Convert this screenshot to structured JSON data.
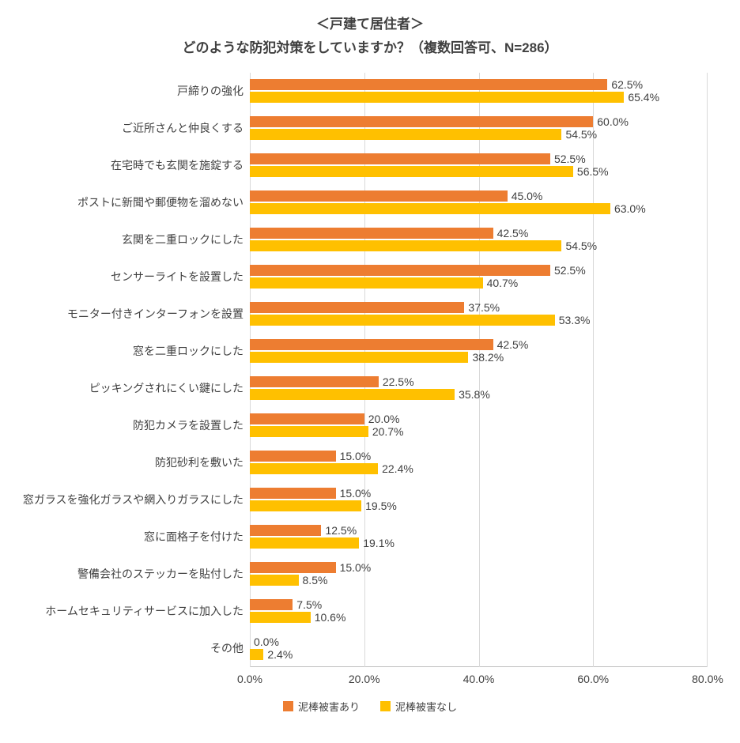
{
  "title": {
    "line1": "＜戸建て居住者＞",
    "line2": "どのような防犯対策をしていますか？（複数回答可、N=286）"
  },
  "chart_data": {
    "type": "bar",
    "orientation": "horizontal",
    "title": "＜戸建て居住者＞ どのような防犯対策をしていますか？（複数回答可、N=286）",
    "categories": [
      "戸締りの強化",
      "ご近所さんと仲良くする",
      "在宅時でも玄関を施錠する",
      "ポストに新聞や郵便物を溜めない",
      "玄関を二重ロックにした",
      "センサーライトを設置した",
      "モニター付きインターフォンを設置",
      "窓を二重ロックにした",
      "ピッキングされにくい鍵にした",
      "防犯カメラを設置した",
      "防犯砂利を敷いた",
      "窓ガラスを強化ガラスや網入りガラスにした",
      "窓に面格子を付けた",
      "警備会社のステッカーを貼付した",
      "ホームセキュリティサービスに加入した",
      "その他"
    ],
    "series": [
      {
        "name": "泥棒被害あり",
        "color": "#ED7D31",
        "values": [
          62.5,
          60.0,
          52.5,
          45.0,
          42.5,
          52.5,
          37.5,
          42.5,
          22.5,
          20.0,
          15.0,
          15.0,
          12.5,
          15.0,
          7.5,
          0.0
        ]
      },
      {
        "name": "泥棒被害なし",
        "color": "#FFC000",
        "values": [
          65.4,
          54.5,
          56.5,
          63.0,
          54.5,
          40.7,
          53.3,
          38.2,
          35.8,
          20.7,
          22.4,
          19.5,
          19.1,
          8.5,
          10.6,
          2.4
        ]
      }
    ],
    "xlim": [
      0,
      80
    ],
    "x_ticks": [
      "0.0%",
      "20.0%",
      "40.0%",
      "60.0%",
      "80.0%"
    ],
    "grid": "vertical",
    "gridline_color": "#D9D9D9",
    "legend_position": "bottom",
    "value_labels": "outside-end, one decimal with % sign"
  }
}
